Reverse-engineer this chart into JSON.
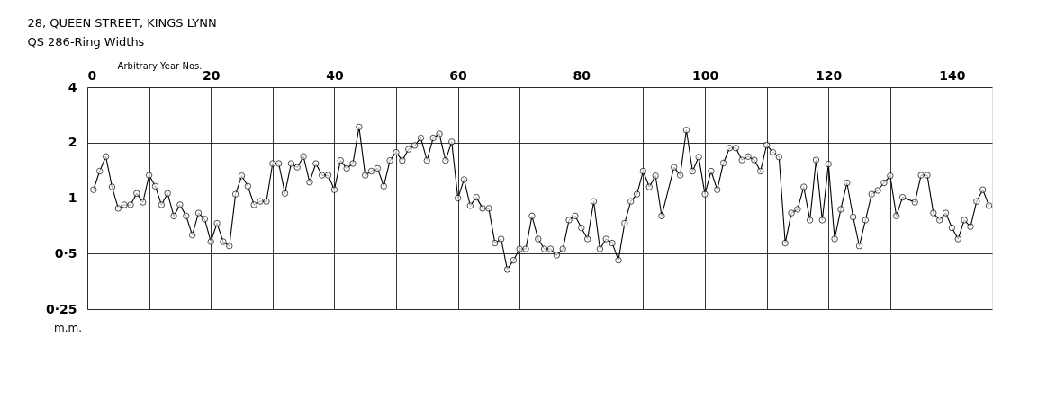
{
  "chart_data": {
    "type": "line",
    "title": "28, QUEEN  STREET, KINGS  LYNN",
    "subtitle": "QS 286-Ring Widths",
    "xlabel": "Arbitrary Year Nos.",
    "ylabel": "m.m.",
    "xlim": [
      0,
      146.5
    ],
    "xticks": [
      0,
      {
        "value": 10,
        "label": null
      },
      20,
      {
        "value": 30,
        "label": null
      },
      40,
      {
        "value": 50,
        "label": null
      },
      60,
      {
        "value": 70,
        "label": null
      },
      80,
      {
        "value": 90,
        "label": null
      },
      100,
      {
        "value": 110,
        "label": null
      },
      120,
      {
        "value": 130,
        "label": null
      },
      140
    ],
    "ylim": [
      0.25,
      4
    ],
    "yticks": [
      {
        "value": 0.25,
        "label": "0·25"
      },
      {
        "value": 0.5,
        "label": "0·5"
      },
      1,
      2,
      4
    ],
    "log": "y",
    "grid": true,
    "marker": "circle",
    "line_style": "solid",
    "series": [
      {
        "color": "#000000",
        "x": [
          1,
          2,
          3,
          4,
          5,
          6,
          7,
          8,
          9,
          10,
          11,
          12,
          13,
          14,
          15,
          16,
          17,
          18,
          19,
          20,
          21,
          22,
          23,
          24,
          25,
          26,
          27,
          28,
          29,
          30,
          31,
          32,
          33,
          34,
          35,
          36,
          37,
          38,
          39,
          40,
          41,
          42,
          43,
          44,
          45,
          46,
          47,
          48,
          49,
          50,
          51,
          52,
          53,
          54,
          55,
          56,
          57,
          58,
          59,
          60,
          61,
          62,
          63,
          64,
          65,
          66,
          67,
          68,
          69,
          70,
          71,
          72,
          73,
          74,
          75,
          76,
          77,
          78,
          79,
          80,
          81,
          82,
          83,
          84,
          85,
          86,
          87,
          88,
          89,
          90,
          91,
          92,
          93,
          95,
          96,
          97,
          98,
          99,
          100,
          101,
          102,
          103,
          104,
          105,
          106,
          107,
          108,
          109,
          110,
          111,
          112,
          113,
          114,
          115,
          116,
          117,
          118,
          119,
          120,
          121,
          122,
          123,
          124,
          125,
          126,
          127,
          128,
          129,
          130,
          131,
          132,
          134,
          135,
          136,
          137,
          138,
          139,
          140,
          141,
          142,
          143,
          144,
          145,
          146
        ],
        "values": [
          1.11,
          1.4,
          1.68,
          1.15,
          0.88,
          0.92,
          0.92,
          1.06,
          0.95,
          1.33,
          1.16,
          0.92,
          1.06,
          0.8,
          0.92,
          0.8,
          0.63,
          0.83,
          0.77,
          0.58,
          0.73,
          0.58,
          0.55,
          1.05,
          1.32,
          1.16,
          0.92,
          0.96,
          0.96,
          1.54,
          1.54,
          1.06,
          1.54,
          1.47,
          1.68,
          1.22,
          1.54,
          1.33,
          1.33,
          1.11,
          1.6,
          1.45,
          1.54,
          2.43,
          1.33,
          1.4,
          1.45,
          1.16,
          1.6,
          1.77,
          1.6,
          1.84,
          1.93,
          2.12,
          1.6,
          2.12,
          2.23,
          1.6,
          2.02,
          1.0,
          1.26,
          0.91,
          1.01,
          0.88,
          0.88,
          0.57,
          0.6,
          0.41,
          0.46,
          0.53,
          0.53,
          0.8,
          0.6,
          0.53,
          0.53,
          0.49,
          0.53,
          0.76,
          0.8,
          0.69,
          0.6,
          0.96,
          0.53,
          0.6,
          0.57,
          0.46,
          0.73,
          0.96,
          1.05,
          1.4,
          1.15,
          1.32,
          0.8,
          1.47,
          1.33,
          2.34,
          1.4,
          1.67,
          1.05,
          1.4,
          1.11,
          1.55,
          1.87,
          1.87,
          1.61,
          1.68,
          1.61,
          1.4,
          1.94,
          1.77,
          1.67,
          0.57,
          0.83,
          0.87,
          1.15,
          0.76,
          1.61,
          0.76,
          1.53,
          0.6,
          0.87,
          1.21,
          0.79,
          0.55,
          0.76,
          1.05,
          1.1,
          1.21,
          1.32,
          0.8,
          1.01,
          0.95,
          1.33,
          1.33,
          0.83,
          0.76,
          0.83,
          0.69,
          0.6,
          0.76,
          0.7,
          0.96,
          1.11,
          0.91
        ]
      }
    ]
  }
}
